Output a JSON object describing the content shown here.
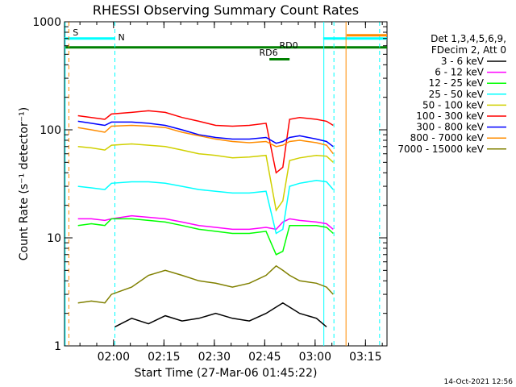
{
  "chart_data": {
    "type": "line",
    "title": "RHESSI Observing Summary Count Rates",
    "xlabel": "Start Time (27-Mar-06 01:45:22)",
    "ylabel": "Count Rate (s⁻¹ detector⁻¹)",
    "y_scale": "log",
    "ylim": [
      1,
      1000
    ],
    "xlim_minutes_after_start": [
      0,
      96
    ],
    "x_ticks": [
      {
        "label": "02:00",
        "minutes": 14.6
      },
      {
        "label": "02:15",
        "minutes": 29.6
      },
      {
        "label": "02:30",
        "minutes": 44.6
      },
      {
        "label": "02:45",
        "minutes": 59.6
      },
      {
        "label": "03:00",
        "minutes": 74.6
      },
      {
        "label": "03:15",
        "minutes": 89.6
      }
    ],
    "y_ticks": [
      {
        "label": "1",
        "value": 1
      },
      {
        "label": "10",
        "value": 10
      },
      {
        "label": "100",
        "value": 100
      },
      {
        "label": "1000",
        "value": 1000
      }
    ],
    "legend": {
      "placement": "right",
      "header": [
        "Det 1,3,4,5,6,9,",
        "FDecim 2, Att 0"
      ]
    },
    "series": [
      {
        "name": "3 - 6 keV",
        "color": "#000000",
        "x": [
          15,
          20,
          25,
          30,
          35,
          40,
          45,
          50,
          55,
          60,
          65,
          70,
          75,
          78
        ],
        "y": [
          1.5,
          1.8,
          1.6,
          1.9,
          1.7,
          1.8,
          2.0,
          1.8,
          1.7,
          2.0,
          2.5,
          2.0,
          1.8,
          1.5
        ]
      },
      {
        "name": "6 - 12 keV",
        "color": "#ff00ff",
        "x": [
          4,
          8,
          12,
          14,
          20,
          25,
          30,
          35,
          40,
          45,
          50,
          55,
          60,
          63,
          65,
          67,
          70,
          75,
          78,
          80
        ],
        "y": [
          15,
          15,
          14.5,
          15,
          16,
          15.5,
          15,
          14,
          13,
          12.5,
          12,
          12,
          12.5,
          12,
          14,
          15,
          14.5,
          14,
          13.5,
          12
        ]
      },
      {
        "name": "12 - 25 keV",
        "color": "#00ff00",
        "x": [
          4,
          8,
          12,
          14,
          20,
          25,
          30,
          35,
          40,
          45,
          50,
          55,
          60,
          63,
          65,
          67,
          70,
          75,
          78,
          80
        ],
        "y": [
          13,
          13.5,
          13,
          15,
          15,
          14.5,
          14,
          13,
          12,
          11.5,
          11,
          11,
          11.5,
          7,
          7.5,
          13,
          13,
          13,
          12.5,
          11
        ]
      },
      {
        "name": "25 - 50 keV",
        "color": "#00ffff",
        "x": [
          4,
          8,
          12,
          14,
          20,
          25,
          30,
          35,
          40,
          45,
          50,
          55,
          60,
          63,
          65,
          67,
          70,
          75,
          78,
          80
        ],
        "y": [
          30,
          29,
          28,
          32,
          33,
          33,
          32,
          30,
          28,
          27,
          26,
          26,
          27,
          11,
          12,
          30,
          32,
          34,
          33,
          28
        ]
      },
      {
        "name": "50 - 100 keV",
        "color": "#d0d000",
        "x": [
          4,
          8,
          12,
          14,
          20,
          25,
          30,
          35,
          40,
          45,
          50,
          55,
          60,
          63,
          65,
          67,
          70,
          75,
          78,
          80
        ],
        "y": [
          70,
          68,
          65,
          72,
          74,
          72,
          70,
          65,
          60,
          58,
          55,
          56,
          58,
          18,
          22,
          52,
          55,
          58,
          57,
          50
        ]
      },
      {
        "name": "100 - 300 keV",
        "color": "#ff0000",
        "x": [
          4,
          8,
          12,
          14,
          20,
          25,
          30,
          35,
          40,
          45,
          50,
          55,
          60,
          63,
          65,
          67,
          70,
          75,
          78,
          80
        ],
        "y": [
          135,
          130,
          125,
          140,
          145,
          150,
          145,
          130,
          120,
          110,
          108,
          110,
          115,
          40,
          45,
          125,
          130,
          125,
          120,
          110
        ]
      },
      {
        "name": "300 - 800 keV",
        "color": "#0000ff",
        "x": [
          4,
          8,
          12,
          14,
          20,
          25,
          30,
          35,
          40,
          45,
          50,
          55,
          60,
          63,
          65,
          67,
          70,
          75,
          78,
          80
        ],
        "y": [
          120,
          115,
          110,
          118,
          118,
          115,
          110,
          100,
          90,
          85,
          82,
          82,
          85,
          75,
          78,
          85,
          88,
          82,
          78,
          70
        ]
      },
      {
        "name": "800 - 7000 keV",
        "color": "#ff8c00",
        "x": [
          4,
          8,
          12,
          14,
          20,
          25,
          30,
          35,
          40,
          45,
          50,
          55,
          60,
          63,
          65,
          67,
          70,
          75,
          78,
          80
        ],
        "y": [
          105,
          100,
          95,
          108,
          110,
          108,
          105,
          95,
          88,
          82,
          78,
          76,
          78,
          70,
          72,
          78,
          80,
          76,
          72,
          60
        ]
      },
      {
        "name": "7000 - 15000 keV",
        "color": "#808000",
        "x": [
          4,
          8,
          12,
          14,
          20,
          25,
          30,
          35,
          40,
          45,
          50,
          55,
          60,
          63,
          65,
          67,
          70,
          75,
          78,
          80
        ],
        "y": [
          2.5,
          2.6,
          2.5,
          3.0,
          3.5,
          4.5,
          5.0,
          4.5,
          4.0,
          3.8,
          3.5,
          3.8,
          4.5,
          5.5,
          5.0,
          4.5,
          4.0,
          3.8,
          3.5,
          3.0
        ]
      }
    ],
    "annotations": [
      {
        "label": "S",
        "color": "#ff8c00",
        "x_minutes": 1.5
      },
      {
        "label": "N",
        "color": "#00ffff",
        "x_minutes": 15
      },
      {
        "label": "RD0",
        "color": "#008000",
        "x_minutes": 63
      },
      {
        "label": "RD6",
        "color": "#008000",
        "x_minutes": 57
      }
    ],
    "state_bars": [
      {
        "color": "#00ffff",
        "y": 700,
        "ranges": [
          [
            0,
            15
          ],
          [
            77,
            96
          ]
        ]
      },
      {
        "color": "#008000",
        "y": 580,
        "ranges": [
          [
            0,
            96
          ]
        ]
      },
      {
        "color": "#008000",
        "y": 450,
        "ranges": [
          [
            61,
            67
          ]
        ]
      },
      {
        "color": "#ff8c00",
        "y": 750,
        "ranges": [
          [
            84,
            96
          ]
        ]
      }
    ],
    "vertical_markers": [
      {
        "color": "#00ffff",
        "style": "solid",
        "x_minutes": 0.2
      },
      {
        "color": "#ff8c00",
        "style": "dashed",
        "x_minutes": 1.3
      },
      {
        "color": "#00ffff",
        "style": "dashed",
        "x_minutes": 15
      },
      {
        "color": "#00ffff",
        "style": "solid",
        "x_minutes": 77.2
      },
      {
        "color": "#00ffff",
        "style": "dashed",
        "x_minutes": 80.2
      },
      {
        "color": "#ff8c00",
        "style": "solid",
        "x_minutes": 83.8
      },
      {
        "color": "#00ffff",
        "style": "dashed",
        "x_minutes": 93.8
      }
    ],
    "footer": "14-Oct-2021 12:56"
  }
}
